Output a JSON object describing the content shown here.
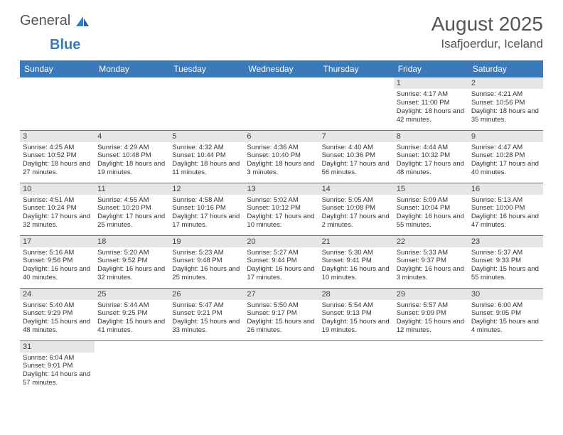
{
  "logo": {
    "text1": "General",
    "text2": "Blue"
  },
  "header": {
    "title": "August 2025",
    "location": "Isafjoerdur, Iceland"
  },
  "colors": {
    "accent": "#3a7ab8",
    "dayStrip": "#e6e6e6",
    "text": "#333",
    "bg": "#ffffff"
  },
  "weekdays": [
    "Sunday",
    "Monday",
    "Tuesday",
    "Wednesday",
    "Thursday",
    "Friday",
    "Saturday"
  ],
  "days": {
    "1": {
      "sunrise": "Sunrise: 4:17 AM",
      "sunset": "Sunset: 11:00 PM",
      "daylight": "Daylight: 18 hours and 42 minutes."
    },
    "2": {
      "sunrise": "Sunrise: 4:21 AM",
      "sunset": "Sunset: 10:56 PM",
      "daylight": "Daylight: 18 hours and 35 minutes."
    },
    "3": {
      "sunrise": "Sunrise: 4:25 AM",
      "sunset": "Sunset: 10:52 PM",
      "daylight": "Daylight: 18 hours and 27 minutes."
    },
    "4": {
      "sunrise": "Sunrise: 4:29 AM",
      "sunset": "Sunset: 10:48 PM",
      "daylight": "Daylight: 18 hours and 19 minutes."
    },
    "5": {
      "sunrise": "Sunrise: 4:32 AM",
      "sunset": "Sunset: 10:44 PM",
      "daylight": "Daylight: 18 hours and 11 minutes."
    },
    "6": {
      "sunrise": "Sunrise: 4:36 AM",
      "sunset": "Sunset: 10:40 PM",
      "daylight": "Daylight: 18 hours and 3 minutes."
    },
    "7": {
      "sunrise": "Sunrise: 4:40 AM",
      "sunset": "Sunset: 10:36 PM",
      "daylight": "Daylight: 17 hours and 56 minutes."
    },
    "8": {
      "sunrise": "Sunrise: 4:44 AM",
      "sunset": "Sunset: 10:32 PM",
      "daylight": "Daylight: 17 hours and 48 minutes."
    },
    "9": {
      "sunrise": "Sunrise: 4:47 AM",
      "sunset": "Sunset: 10:28 PM",
      "daylight": "Daylight: 17 hours and 40 minutes."
    },
    "10": {
      "sunrise": "Sunrise: 4:51 AM",
      "sunset": "Sunset: 10:24 PM",
      "daylight": "Daylight: 17 hours and 32 minutes."
    },
    "11": {
      "sunrise": "Sunrise: 4:55 AM",
      "sunset": "Sunset: 10:20 PM",
      "daylight": "Daylight: 17 hours and 25 minutes."
    },
    "12": {
      "sunrise": "Sunrise: 4:58 AM",
      "sunset": "Sunset: 10:16 PM",
      "daylight": "Daylight: 17 hours and 17 minutes."
    },
    "13": {
      "sunrise": "Sunrise: 5:02 AM",
      "sunset": "Sunset: 10:12 PM",
      "daylight": "Daylight: 17 hours and 10 minutes."
    },
    "14": {
      "sunrise": "Sunrise: 5:05 AM",
      "sunset": "Sunset: 10:08 PM",
      "daylight": "Daylight: 17 hours and 2 minutes."
    },
    "15": {
      "sunrise": "Sunrise: 5:09 AM",
      "sunset": "Sunset: 10:04 PM",
      "daylight": "Daylight: 16 hours and 55 minutes."
    },
    "16": {
      "sunrise": "Sunrise: 5:13 AM",
      "sunset": "Sunset: 10:00 PM",
      "daylight": "Daylight: 16 hours and 47 minutes."
    },
    "17": {
      "sunrise": "Sunrise: 5:16 AM",
      "sunset": "Sunset: 9:56 PM",
      "daylight": "Daylight: 16 hours and 40 minutes."
    },
    "18": {
      "sunrise": "Sunrise: 5:20 AM",
      "sunset": "Sunset: 9:52 PM",
      "daylight": "Daylight: 16 hours and 32 minutes."
    },
    "19": {
      "sunrise": "Sunrise: 5:23 AM",
      "sunset": "Sunset: 9:48 PM",
      "daylight": "Daylight: 16 hours and 25 minutes."
    },
    "20": {
      "sunrise": "Sunrise: 5:27 AM",
      "sunset": "Sunset: 9:44 PM",
      "daylight": "Daylight: 16 hours and 17 minutes."
    },
    "21": {
      "sunrise": "Sunrise: 5:30 AM",
      "sunset": "Sunset: 9:41 PM",
      "daylight": "Daylight: 16 hours and 10 minutes."
    },
    "22": {
      "sunrise": "Sunrise: 5:33 AM",
      "sunset": "Sunset: 9:37 PM",
      "daylight": "Daylight: 16 hours and 3 minutes."
    },
    "23": {
      "sunrise": "Sunrise: 5:37 AM",
      "sunset": "Sunset: 9:33 PM",
      "daylight": "Daylight: 15 hours and 55 minutes."
    },
    "24": {
      "sunrise": "Sunrise: 5:40 AM",
      "sunset": "Sunset: 9:29 PM",
      "daylight": "Daylight: 15 hours and 48 minutes."
    },
    "25": {
      "sunrise": "Sunrise: 5:44 AM",
      "sunset": "Sunset: 9:25 PM",
      "daylight": "Daylight: 15 hours and 41 minutes."
    },
    "26": {
      "sunrise": "Sunrise: 5:47 AM",
      "sunset": "Sunset: 9:21 PM",
      "daylight": "Daylight: 15 hours and 33 minutes."
    },
    "27": {
      "sunrise": "Sunrise: 5:50 AM",
      "sunset": "Sunset: 9:17 PM",
      "daylight": "Daylight: 15 hours and 26 minutes."
    },
    "28": {
      "sunrise": "Sunrise: 5:54 AM",
      "sunset": "Sunset: 9:13 PM",
      "daylight": "Daylight: 15 hours and 19 minutes."
    },
    "29": {
      "sunrise": "Sunrise: 5:57 AM",
      "sunset": "Sunset: 9:09 PM",
      "daylight": "Daylight: 15 hours and 12 minutes."
    },
    "30": {
      "sunrise": "Sunrise: 6:00 AM",
      "sunset": "Sunset: 9:05 PM",
      "daylight": "Daylight: 15 hours and 4 minutes."
    },
    "31": {
      "sunrise": "Sunrise: 6:04 AM",
      "sunset": "Sunset: 9:01 PM",
      "daylight": "Daylight: 14 hours and 57 minutes."
    }
  },
  "layout": {
    "first_weekday_index": 5,
    "days_in_month": 31,
    "rows": 6,
    "cols": 7
  }
}
